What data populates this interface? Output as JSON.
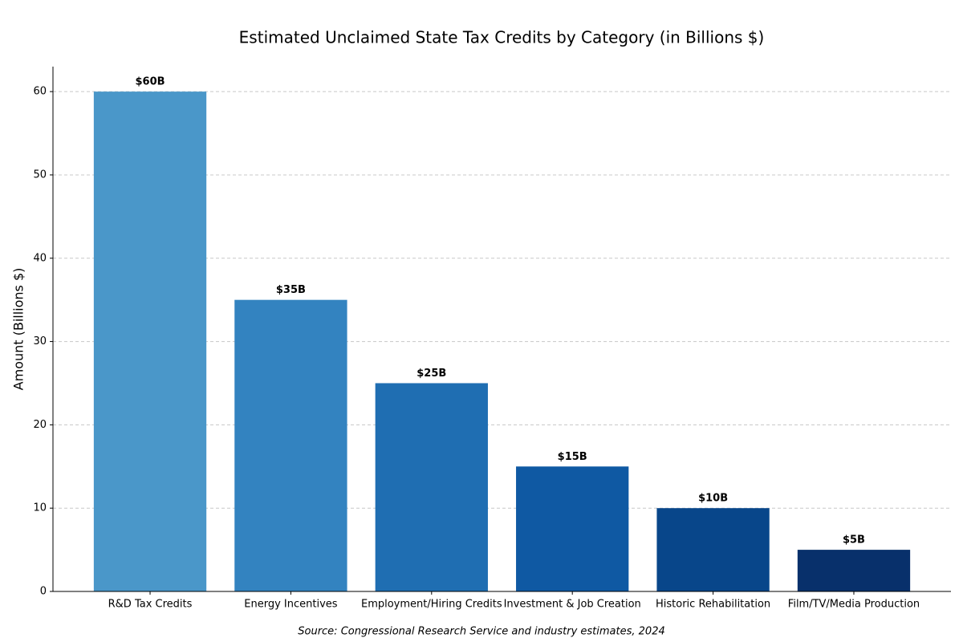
{
  "chart_data": {
    "type": "bar",
    "title": "Estimated Unclaimed State Tax Credits by Category (in Billions $)",
    "y_label": "Amount (Billions $)",
    "source": "Source: Congressional Research Service and industry estimates, 2024",
    "categories": [
      "R&D Tax Credits",
      "Energy Incentives",
      "Employment/Hiring Credits",
      "Investment & Job Creation",
      "Historic Rehabilitation",
      "Film/TV/Media Production"
    ],
    "values": [
      60,
      35,
      25,
      15,
      10,
      5
    ],
    "value_labels": [
      "$60B",
      "$35B",
      "$25B",
      "$15B",
      "$10B",
      "$5B"
    ],
    "colors": [
      "#4a97c9",
      "#3383c0",
      "#1f6eb2",
      "#0f59a3",
      "#08468a",
      "#08306b"
    ],
    "ylim": [
      0,
      63
    ],
    "yticks": [
      0,
      10,
      20,
      30,
      40,
      50,
      60
    ],
    "grid": true
  }
}
